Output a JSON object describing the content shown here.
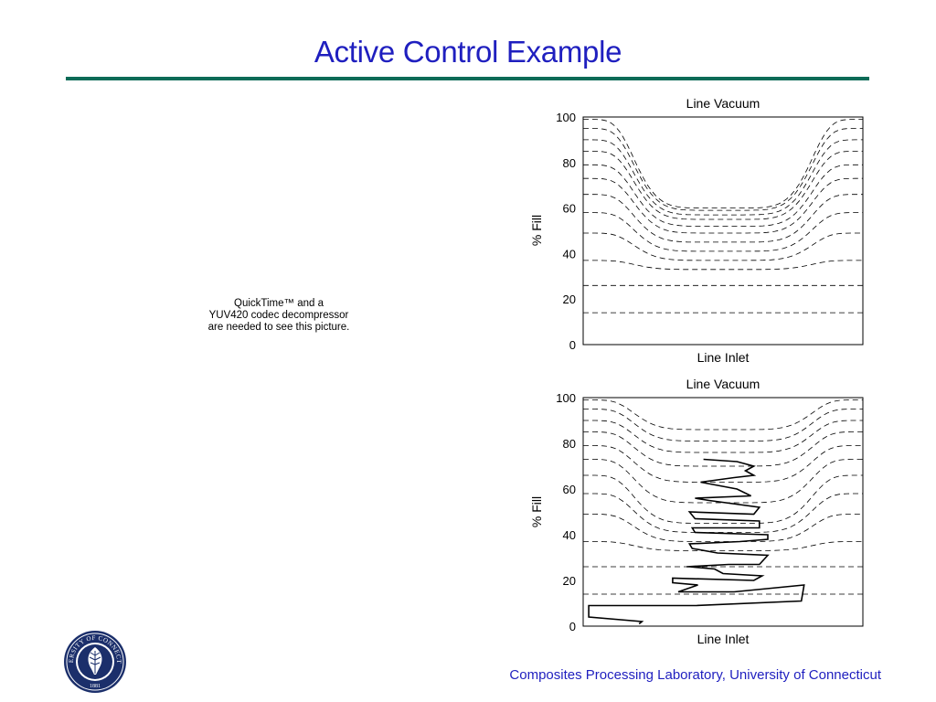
{
  "slide": {
    "title": "Active Control Example",
    "placeholder_lines": [
      "QuickTime™ and a",
      "YUV420 codec decompressor",
      "are needed to see this picture."
    ],
    "footer": "Composites Processing Laboratory, University of Connecticut",
    "logo": {
      "ring_text": "UNIVERSITY OF CONNECTICUT",
      "year": "1881",
      "color": "#1b2f6b"
    },
    "colors": {
      "title": "#1f1fbf",
      "rule": "#0d6b57",
      "footer": "#1f1fbf"
    }
  },
  "chart_data": [
    {
      "type": "line",
      "title": "Line Vacuum",
      "xlabel": "Line Inlet",
      "ylabel": "% Fill",
      "ylim": [
        0,
        100
      ],
      "yticks": [
        0,
        20,
        40,
        60,
        80,
        100
      ],
      "grid": false,
      "legend": "none",
      "series": [
        {
          "style": "dashed",
          "edge_y": 14,
          "center_y": 14
        },
        {
          "style": "dashed",
          "edge_y": 26,
          "center_y": 26
        },
        {
          "style": "dashed",
          "edge_y": 37,
          "center_y": 33
        },
        {
          "style": "dashed",
          "edge_y": 49,
          "center_y": 37
        },
        {
          "style": "dashed",
          "edge_y": 58,
          "center_y": 41
        },
        {
          "style": "dashed",
          "edge_y": 66,
          "center_y": 45
        },
        {
          "style": "dashed",
          "edge_y": 73,
          "center_y": 49
        },
        {
          "style": "dashed",
          "edge_y": 79,
          "center_y": 52
        },
        {
          "style": "dashed",
          "edge_y": 85,
          "center_y": 55
        },
        {
          "style": "dashed",
          "edge_y": 90,
          "center_y": 57
        },
        {
          "style": "dashed",
          "edge_y": 95,
          "center_y": 59
        },
        {
          "style": "dashed",
          "edge_y": 99,
          "center_y": 60
        }
      ]
    },
    {
      "type": "line",
      "title": "Line Vacuum",
      "xlabel": "Line Inlet",
      "ylabel": "% Fill",
      "ylim": [
        0,
        100
      ],
      "yticks": [
        0,
        20,
        40,
        60,
        80,
        100
      ],
      "grid": false,
      "legend": "none",
      "series": [
        {
          "style": "dashed",
          "edge_y": 14,
          "center_y": 14
        },
        {
          "style": "dashed",
          "edge_y": 26,
          "center_y": 26
        },
        {
          "style": "dashed",
          "edge_y": 37,
          "center_y": 33
        },
        {
          "style": "dashed",
          "edge_y": 49,
          "center_y": 37
        },
        {
          "style": "dashed",
          "edge_y": 58,
          "center_y": 41
        },
        {
          "style": "dashed",
          "edge_y": 66,
          "center_y": 45
        },
        {
          "style": "dashed",
          "edge_y": 73,
          "center_y": 54
        },
        {
          "style": "dashed",
          "edge_y": 79,
          "center_y": 63
        },
        {
          "style": "dashed",
          "edge_y": 85,
          "center_y": 70
        },
        {
          "style": "dashed",
          "edge_y": 90,
          "center_y": 76
        },
        {
          "style": "dashed",
          "edge_y": 95,
          "center_y": 81
        },
        {
          "style": "dashed",
          "edge_y": 99,
          "center_y": 86
        }
      ],
      "control_path": {
        "style": "solid",
        "points": [
          [
            0.2,
            1
          ],
          [
            0.21,
            2
          ],
          [
            0.02,
            4
          ],
          [
            0.02,
            9
          ],
          [
            0.4,
            9
          ],
          [
            0.78,
            11
          ],
          [
            0.79,
            18
          ],
          [
            0.54,
            15
          ],
          [
            0.34,
            15
          ],
          [
            0.41,
            18
          ],
          [
            0.32,
            19
          ],
          [
            0.32,
            21
          ],
          [
            0.61,
            20
          ],
          [
            0.64,
            22
          ],
          [
            0.5,
            23
          ],
          [
            0.47,
            25
          ],
          [
            0.38,
            26
          ],
          [
            0.37,
            26
          ],
          [
            0.52,
            27
          ],
          [
            0.63,
            27
          ],
          [
            0.66,
            31
          ],
          [
            0.48,
            32
          ],
          [
            0.39,
            34
          ],
          [
            0.38,
            36
          ],
          [
            0.56,
            37
          ],
          [
            0.66,
            38
          ],
          [
            0.66,
            40
          ],
          [
            0.4,
            41
          ],
          [
            0.39,
            43
          ],
          [
            0.63,
            43
          ],
          [
            0.63,
            46
          ],
          [
            0.4,
            47
          ],
          [
            0.38,
            50
          ],
          [
            0.61,
            49
          ],
          [
            0.63,
            52
          ],
          [
            0.45,
            55
          ],
          [
            0.4,
            56
          ],
          [
            0.6,
            57
          ],
          [
            0.55,
            60
          ],
          [
            0.42,
            63
          ],
          [
            0.54,
            65
          ],
          [
            0.61,
            66
          ],
          [
            0.58,
            68
          ],
          [
            0.61,
            70
          ],
          [
            0.55,
            72
          ],
          [
            0.43,
            73
          ]
        ]
      }
    }
  ]
}
